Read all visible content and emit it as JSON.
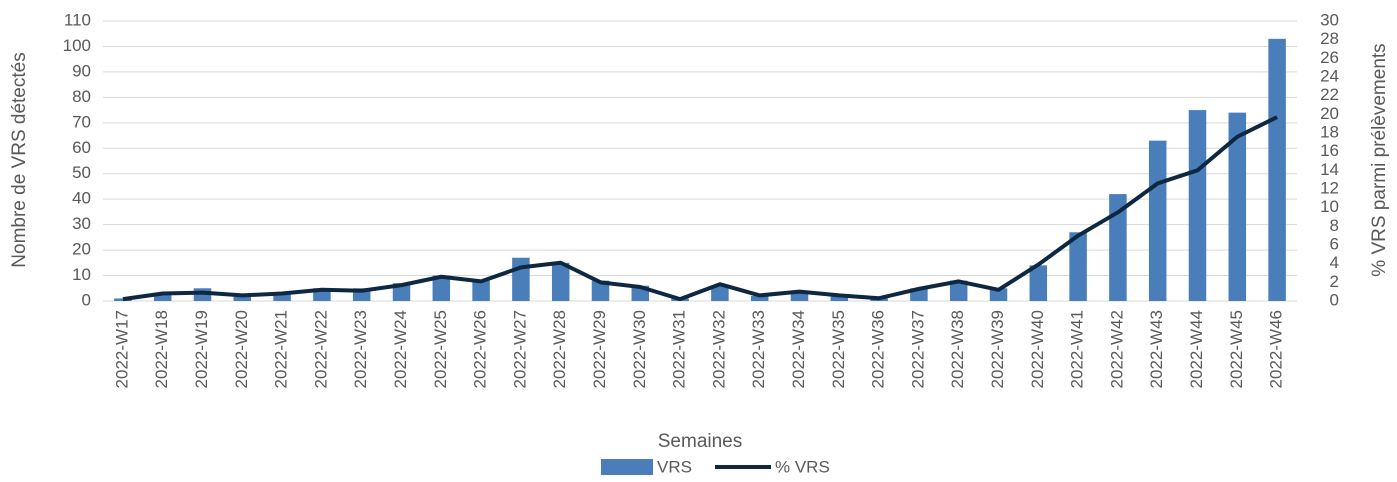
{
  "chart_data": {
    "type": "combo",
    "x_label": "Semaines",
    "y_label": "Nombre de VRS détectés",
    "y2_label": "% VRS parmi prélèvements",
    "categories": [
      "2022-W17",
      "2022-W18",
      "2022-W19",
      "2022-W20",
      "2022-W21",
      "2022-W22",
      "2022-W23",
      "2022-W24",
      "2022-W25",
      "2022-W26",
      "2022-W27",
      "2022-W28",
      "2022-W29",
      "2022-W30",
      "2022-W31",
      "2022-W32",
      "2022-W33",
      "2022-W34",
      "2022-W35",
      "2022-W36",
      "2022-W37",
      "2022-W38",
      "2022-W39",
      "2022-W40",
      "2022-W41",
      "2022-W42",
      "2022-W43",
      "2022-W44",
      "2022-W45",
      "2022-W46"
    ],
    "series": [
      {
        "name": "VRS",
        "type": "bar",
        "color": "#4a7ebb",
        "values": [
          1,
          3,
          5,
          2,
          3,
          5,
          5,
          7,
          10,
          8,
          17,
          15,
          8,
          6,
          1,
          6,
          2,
          4,
          2,
          1,
          5,
          8,
          5,
          14,
          27,
          42,
          63,
          75,
          74,
          103
        ]
      },
      {
        "name": "% VRS",
        "type": "line",
        "axis": "y2",
        "color": "#0e2841",
        "values": [
          0.2,
          0.8,
          0.9,
          0.6,
          0.8,
          1.2,
          1.1,
          1.7,
          2.6,
          2.1,
          3.6,
          4.1,
          2.0,
          1.5,
          0.2,
          1.8,
          0.6,
          1.0,
          0.6,
          0.3,
          1.3,
          2.1,
          1.2,
          3.9,
          7.0,
          9.5,
          12.6,
          14.0,
          17.6,
          19.7
        ]
      }
    ],
    "ylim": [
      0,
      110
    ],
    "yticks": [
      0,
      10,
      20,
      30,
      40,
      50,
      60,
      70,
      80,
      90,
      100,
      110
    ],
    "y2lim": [
      0,
      30
    ],
    "y2ticks": [
      0,
      2,
      4,
      6,
      8,
      10,
      12,
      14,
      16,
      18,
      20,
      22,
      24,
      26,
      28,
      30
    ],
    "grid": true
  }
}
